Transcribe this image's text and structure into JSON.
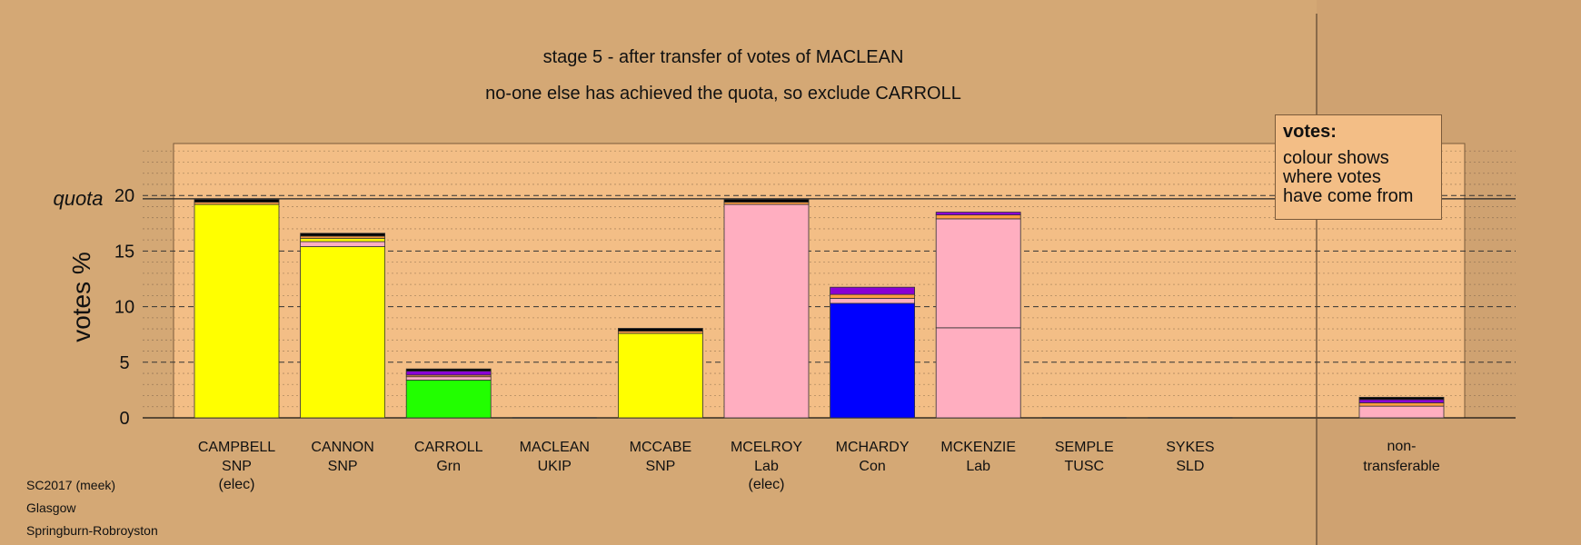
{
  "title": "stage 5 - after transfer of votes of MACLEAN",
  "subtitle": "no-one else has achieved the quota, so exclude CARROLL",
  "legend": {
    "heading": "votes:",
    "lines": [
      "colour shows",
      "where votes",
      "have come from"
    ]
  },
  "footer": [
    "SC2017 (meek)",
    "Glasgow",
    "Springburn-Robroyston"
  ],
  "colors": {
    "background": "#d4a875",
    "plot": "#f3be86",
    "SNP": "#ffff00",
    "Lab": "#ffaec0",
    "Con": "#0000ff",
    "Grn": "#22ff00",
    "transfer_orange": "#ff9d40",
    "transfer_purple": "#8a00d4",
    "transfer_black": "#000000"
  },
  "chart_data": {
    "type": "bar",
    "stacked": true,
    "ylabel": "votes %",
    "quota_label": "quota",
    "quota": 19.7,
    "ylim": [
      0,
      25
    ],
    "yticks": [
      0,
      5,
      10,
      15,
      20
    ],
    "grid": true,
    "categories": [
      {
        "name": "CAMPBELL",
        "party": "SNP",
        "note": "(elec)"
      },
      {
        "name": "CANNON",
        "party": "SNP",
        "note": ""
      },
      {
        "name": "CARROLL",
        "party": "Grn",
        "note": ""
      },
      {
        "name": "MACLEAN",
        "party": "UKIP",
        "note": ""
      },
      {
        "name": "MCCABE",
        "party": "SNP",
        "note": ""
      },
      {
        "name": "MCELROY",
        "party": "Lab",
        "note": "(elec)"
      },
      {
        "name": "MCHARDY",
        "party": "Con",
        "note": ""
      },
      {
        "name": "MCKENZIE",
        "party": "Lab",
        "note": ""
      },
      {
        "name": "SEMPLE",
        "party": "TUSC",
        "note": ""
      },
      {
        "name": "SYKES",
        "party": "SLD",
        "note": ""
      }
    ],
    "nontransferable": {
      "label": [
        "non-",
        "transferable"
      ]
    },
    "stacks": [
      [
        {
          "c": "SNP",
          "v": 19.2
        },
        {
          "c": "transfer_orange",
          "v": 0.2
        },
        {
          "c": "transfer_black",
          "v": 0.25
        }
      ],
      [
        {
          "c": "SNP",
          "v": 15.4
        },
        {
          "c": "Lab",
          "v": 0.45
        },
        {
          "c": "SNP",
          "v": 0.3
        },
        {
          "c": "transfer_orange",
          "v": 0.2
        },
        {
          "c": "transfer_black",
          "v": 0.25
        }
      ],
      [
        {
          "c": "Grn",
          "v": 3.4
        },
        {
          "c": "Lab",
          "v": 0.3
        },
        {
          "c": "transfer_orange",
          "v": 0.15
        },
        {
          "c": "transfer_purple",
          "v": 0.35
        },
        {
          "c": "transfer_black",
          "v": 0.2
        }
      ],
      [],
      [
        {
          "c": "SNP",
          "v": 7.6
        },
        {
          "c": "transfer_orange",
          "v": 0.2
        },
        {
          "c": "transfer_black",
          "v": 0.25
        }
      ],
      [
        {
          "c": "Lab",
          "v": 19.2
        },
        {
          "c": "transfer_orange",
          "v": 0.2
        },
        {
          "c": "transfer_black",
          "v": 0.25
        }
      ],
      [
        {
          "c": "Con",
          "v": 10.3
        },
        {
          "c": "Lab",
          "v": 0.45
        },
        {
          "c": "transfer_orange",
          "v": 0.35
        },
        {
          "c": "transfer_purple",
          "v": 0.65
        }
      ],
      [
        {
          "c": "Lab",
          "v": 8.1
        },
        {
          "c": "Lab",
          "v": 9.8
        },
        {
          "c": "transfer_orange",
          "v": 0.35
        },
        {
          "c": "transfer_purple",
          "v": 0.25
        }
      ],
      [],
      []
    ],
    "nontransferable_stack": [
      {
        "c": "Lab",
        "v": 1.05
      },
      {
        "c": "transfer_orange",
        "v": 0.3
      },
      {
        "c": "transfer_purple",
        "v": 0.3
      },
      {
        "c": "transfer_black",
        "v": 0.2
      }
    ]
  }
}
